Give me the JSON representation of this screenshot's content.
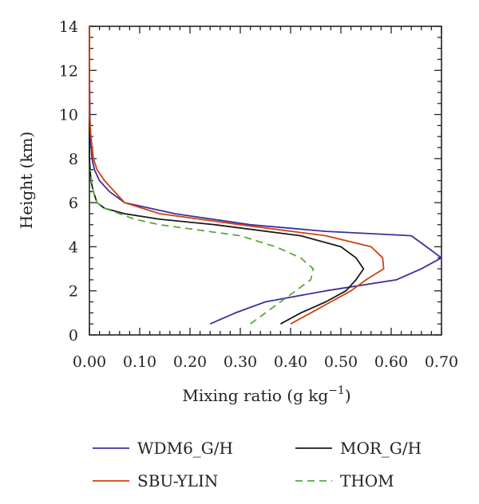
{
  "chart_data": {
    "type": "line",
    "xlabel": "Mixing ratio (g kg",
    "xlabel_sup": "−1",
    "xlabel_close": ")",
    "ylabel": "Height (km)",
    "xlim": [
      0,
      0.7
    ],
    "ylim": [
      0,
      14
    ],
    "x_ticks": [
      0.0,
      0.1,
      0.2,
      0.3,
      0.4,
      0.5,
      0.6,
      0.7
    ],
    "x_tick_labels": [
      "0.00",
      "0.10",
      "0.20",
      "0.30",
      "0.40",
      "0.50",
      "0.60",
      "0.70"
    ],
    "y_ticks": [
      0,
      2,
      4,
      6,
      8,
      10,
      12,
      14
    ],
    "y_tick_labels": [
      "0",
      "2",
      "4",
      "6",
      "8",
      "10",
      "12",
      "14"
    ],
    "grid": false,
    "legend_position": "bottom",
    "series": [
      {
        "name": "WDM6_G/H",
        "color": "#3b2fa0",
        "dash": "solid",
        "points": [
          [
            0.24,
            0.5
          ],
          [
            0.29,
            1.0
          ],
          [
            0.35,
            1.5
          ],
          [
            0.47,
            2.0
          ],
          [
            0.61,
            2.5
          ],
          [
            0.66,
            3.0
          ],
          [
            0.7,
            3.5
          ],
          [
            0.67,
            4.0
          ],
          [
            0.64,
            4.5
          ],
          [
            0.47,
            4.7
          ],
          [
            0.32,
            5.0
          ],
          [
            0.17,
            5.5
          ],
          [
            0.07,
            6.0
          ],
          [
            0.04,
            6.5
          ],
          [
            0.02,
            7.0
          ],
          [
            0.01,
            7.5
          ],
          [
            0.005,
            8.0
          ],
          [
            0.002,
            9.0
          ],
          [
            0.001,
            10.0
          ],
          [
            0.0,
            12.0
          ],
          [
            0.0,
            14.0
          ]
        ]
      },
      {
        "name": "MOR_G/H",
        "color": "#1a1a1a",
        "dash": "solid",
        "points": [
          [
            0.38,
            0.5
          ],
          [
            0.42,
            1.0
          ],
          [
            0.47,
            1.5
          ],
          [
            0.51,
            2.0
          ],
          [
            0.53,
            2.5
          ],
          [
            0.545,
            3.0
          ],
          [
            0.53,
            3.5
          ],
          [
            0.5,
            4.0
          ],
          [
            0.42,
            4.5
          ],
          [
            0.25,
            5.0
          ],
          [
            0.14,
            5.25
          ],
          [
            0.07,
            5.5
          ],
          [
            0.03,
            5.75
          ],
          [
            0.015,
            6.0
          ],
          [
            0.008,
            6.5
          ],
          [
            0.003,
            7.0
          ],
          [
            0.0,
            8.0
          ],
          [
            0.0,
            14.0
          ]
        ]
      },
      {
        "name": "SBU-YLIN",
        "color": "#d04010",
        "dash": "solid",
        "points": [
          [
            0.4,
            0.5
          ],
          [
            0.44,
            1.0
          ],
          [
            0.48,
            1.5
          ],
          [
            0.52,
            2.0
          ],
          [
            0.55,
            2.5
          ],
          [
            0.585,
            3.0
          ],
          [
            0.583,
            3.5
          ],
          [
            0.56,
            4.0
          ],
          [
            0.47,
            4.5
          ],
          [
            0.3,
            5.0
          ],
          [
            0.14,
            5.5
          ],
          [
            0.07,
            6.0
          ],
          [
            0.05,
            6.5
          ],
          [
            0.03,
            7.0
          ],
          [
            0.015,
            7.5
          ],
          [
            0.008,
            8.0
          ],
          [
            0.003,
            9.0
          ],
          [
            0.0,
            10.0
          ],
          [
            0.0,
            14.0
          ]
        ]
      },
      {
        "name": "THOM",
        "color": "#5aa83c",
        "dash": "dashed",
        "points": [
          [
            0.32,
            0.5
          ],
          [
            0.35,
            1.0
          ],
          [
            0.38,
            1.5
          ],
          [
            0.41,
            2.0
          ],
          [
            0.44,
            2.5
          ],
          [
            0.445,
            3.0
          ],
          [
            0.42,
            3.5
          ],
          [
            0.37,
            4.0
          ],
          [
            0.3,
            4.5
          ],
          [
            0.22,
            4.75
          ],
          [
            0.14,
            5.0
          ],
          [
            0.09,
            5.25
          ],
          [
            0.06,
            5.5
          ],
          [
            0.03,
            5.75
          ],
          [
            0.015,
            6.0
          ],
          [
            0.008,
            6.5
          ],
          [
            0.004,
            7.0
          ],
          [
            0.002,
            7.5
          ]
        ]
      }
    ],
    "legend_order": [
      "WDM6_G/H",
      "MOR_G/H",
      "SBU-YLIN",
      "THOM"
    ]
  }
}
